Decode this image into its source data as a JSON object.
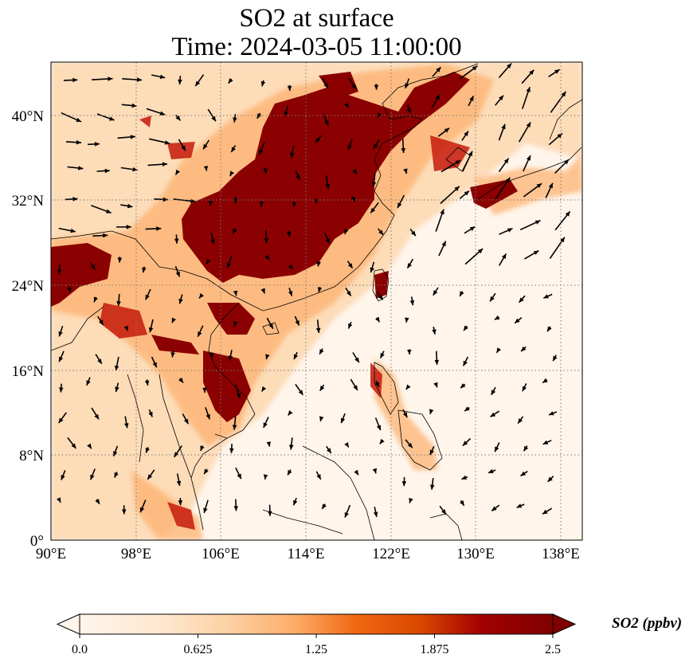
{
  "title": {
    "line1": "SO2 at surface",
    "line2": "Time: 2024-03-05 11:00:00"
  },
  "map": {
    "lon_range": [
      90,
      140
    ],
    "lat_range": [
      0,
      45
    ],
    "lon_ticks": [
      90,
      98,
      106,
      114,
      122,
      130,
      138
    ],
    "lon_tick_labels": [
      "90°E",
      "98°E",
      "106°E",
      "114°E",
      "122°E",
      "130°E",
      "138°E"
    ],
    "lat_ticks": [
      0,
      8,
      16,
      24,
      32,
      40
    ],
    "lat_tick_labels": [
      "0°",
      "8°N",
      "16°N",
      "24°N",
      "32°N",
      "40°N"
    ],
    "gridlines": "dotted",
    "background_color": "#fff5eb"
  },
  "colorbar": {
    "label": "SO2 (ppbv)",
    "min": 0.0,
    "max": 2.5,
    "ticks": [
      0.0,
      0.625,
      1.25,
      1.875,
      2.5
    ],
    "tick_labels": [
      "0.0",
      "0.625",
      "1.25",
      "1.875",
      "2.5"
    ],
    "extend": "both",
    "colormap": [
      "#fff5eb",
      "#fdd0a2",
      "#fdae6b",
      "#f16913",
      "#d94801",
      "#a30000",
      "#7f0000"
    ]
  }
}
